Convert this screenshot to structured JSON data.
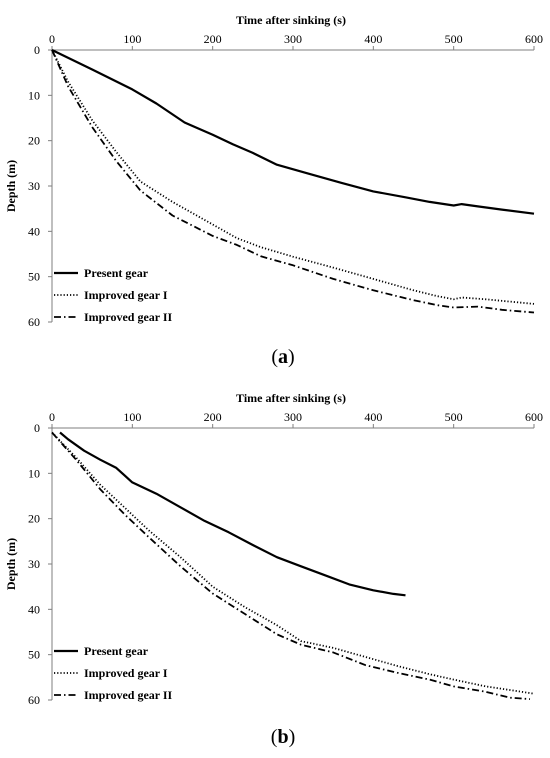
{
  "chart_data": [
    {
      "type": "line",
      "panel_label": "a",
      "xlabel": "Time after sinking (s)",
      "ylabel": "Depth (m)",
      "xlim": [
        0,
        600
      ],
      "ylim": [
        0,
        60
      ],
      "x_axis_position": "top",
      "y_axis_inverted": true,
      "xticks": [
        0,
        100,
        200,
        300,
        400,
        500,
        600
      ],
      "yticks": [
        0,
        10,
        20,
        30,
        40,
        50,
        60
      ],
      "legend_position": "bottom-left",
      "series": [
        {
          "name": "Present gear",
          "style": "solid",
          "points": [
            [
              0,
              0
            ],
            [
              50,
              4.3
            ],
            [
              100,
              8.7
            ],
            [
              130,
              11.8
            ],
            [
              165,
              16
            ],
            [
              200,
              18.7
            ],
            [
              225,
              20.8
            ],
            [
              250,
              22.7
            ],
            [
              280,
              25.3
            ],
            [
              320,
              27.3
            ],
            [
              360,
              29.3
            ],
            [
              400,
              31.2
            ],
            [
              440,
              32.5
            ],
            [
              470,
              33.5
            ],
            [
              500,
              34.3
            ],
            [
              510,
              34
            ],
            [
              530,
              34.5
            ],
            [
              560,
              35.2
            ],
            [
              600,
              36.1
            ]
          ]
        },
        {
          "name": "Improved gear I",
          "style": "dotted",
          "points": [
            [
              0,
              0
            ],
            [
              20,
              7
            ],
            [
              50,
              15.5
            ],
            [
              80,
              22.5
            ],
            [
              110,
              29
            ],
            [
              150,
              33.5
            ],
            [
              200,
              38.5
            ],
            [
              230,
              41.5
            ],
            [
              260,
              43.5
            ],
            [
              300,
              45.6
            ],
            [
              350,
              48
            ],
            [
              400,
              50.5
            ],
            [
              450,
              53
            ],
            [
              480,
              54.3
            ],
            [
              500,
              55
            ],
            [
              510,
              54.6
            ],
            [
              540,
              55
            ],
            [
              570,
              55.5
            ],
            [
              600,
              56
            ]
          ]
        },
        {
          "name": "Improved gear II",
          "style": "dashdot",
          "points": [
            [
              0,
              0
            ],
            [
              20,
              8
            ],
            [
              50,
              17
            ],
            [
              80,
              24.5
            ],
            [
              110,
              31
            ],
            [
              150,
              36.5
            ],
            [
              200,
              41
            ],
            [
              230,
              43
            ],
            [
              260,
              45.5
            ],
            [
              300,
              47.5
            ],
            [
              350,
              50.5
            ],
            [
              400,
              53
            ],
            [
              450,
              55.2
            ],
            [
              480,
              56.3
            ],
            [
              500,
              56.8
            ],
            [
              530,
              56.6
            ],
            [
              560,
              57.3
            ],
            [
              600,
              57.9
            ]
          ]
        }
      ]
    },
    {
      "type": "line",
      "panel_label": "b",
      "xlabel": "Time after sinking (s)",
      "ylabel": "Depth (m)",
      "xlim": [
        0,
        600
      ],
      "ylim": [
        0,
        60
      ],
      "x_axis_position": "top",
      "y_axis_inverted": true,
      "xticks": [
        0,
        100,
        200,
        300,
        400,
        500,
        600
      ],
      "yticks": [
        0,
        10,
        20,
        30,
        40,
        50,
        60
      ],
      "legend_position": "bottom-left",
      "series": [
        {
          "name": "Present gear",
          "style": "solid",
          "points": [
            [
              10,
              1
            ],
            [
              20,
              2.5
            ],
            [
              40,
              5
            ],
            [
              60,
              7
            ],
            [
              80,
              8.8
            ],
            [
              100,
              12
            ],
            [
              130,
              14.5
            ],
            [
              160,
              17.5
            ],
            [
              190,
              20.5
            ],
            [
              220,
              23
            ],
            [
              250,
              25.8
            ],
            [
              280,
              28.5
            ],
            [
              310,
              30.5
            ],
            [
              340,
              32.5
            ],
            [
              370,
              34.5
            ],
            [
              400,
              35.8
            ],
            [
              425,
              36.6
            ],
            [
              440,
              36.9
            ]
          ]
        },
        {
          "name": "Improved gear I",
          "style": "dotted",
          "points": [
            [
              0,
              1
            ],
            [
              30,
              6.5
            ],
            [
              60,
              12.5
            ],
            [
              90,
              17.5
            ],
            [
              120,
              22.5
            ],
            [
              160,
              28.5
            ],
            [
              200,
              35
            ],
            [
              240,
              39.5
            ],
            [
              280,
              43.5
            ],
            [
              310,
              47
            ],
            [
              350,
              48.5
            ],
            [
              390,
              50.5
            ],
            [
              430,
              52.5
            ],
            [
              470,
              54.3
            ],
            [
              500,
              55.5
            ],
            [
              540,
              57
            ],
            [
              570,
              57.8
            ],
            [
              600,
              58.6
            ]
          ]
        },
        {
          "name": "Improved gear II",
          "style": "dashdot",
          "points": [
            [
              0,
              1
            ],
            [
              30,
              7
            ],
            [
              60,
              13.5
            ],
            [
              90,
              19
            ],
            [
              120,
              24
            ],
            [
              160,
              30.5
            ],
            [
              200,
              36.5
            ],
            [
              240,
              41
            ],
            [
              280,
              45.5
            ],
            [
              310,
              47.8
            ],
            [
              350,
              49.5
            ],
            [
              390,
              52.3
            ],
            [
              430,
              54
            ],
            [
              470,
              55.5
            ],
            [
              500,
              57
            ],
            [
              540,
              58.2
            ],
            [
              570,
              59.5
            ],
            [
              595,
              59.8
            ]
          ]
        }
      ]
    }
  ]
}
